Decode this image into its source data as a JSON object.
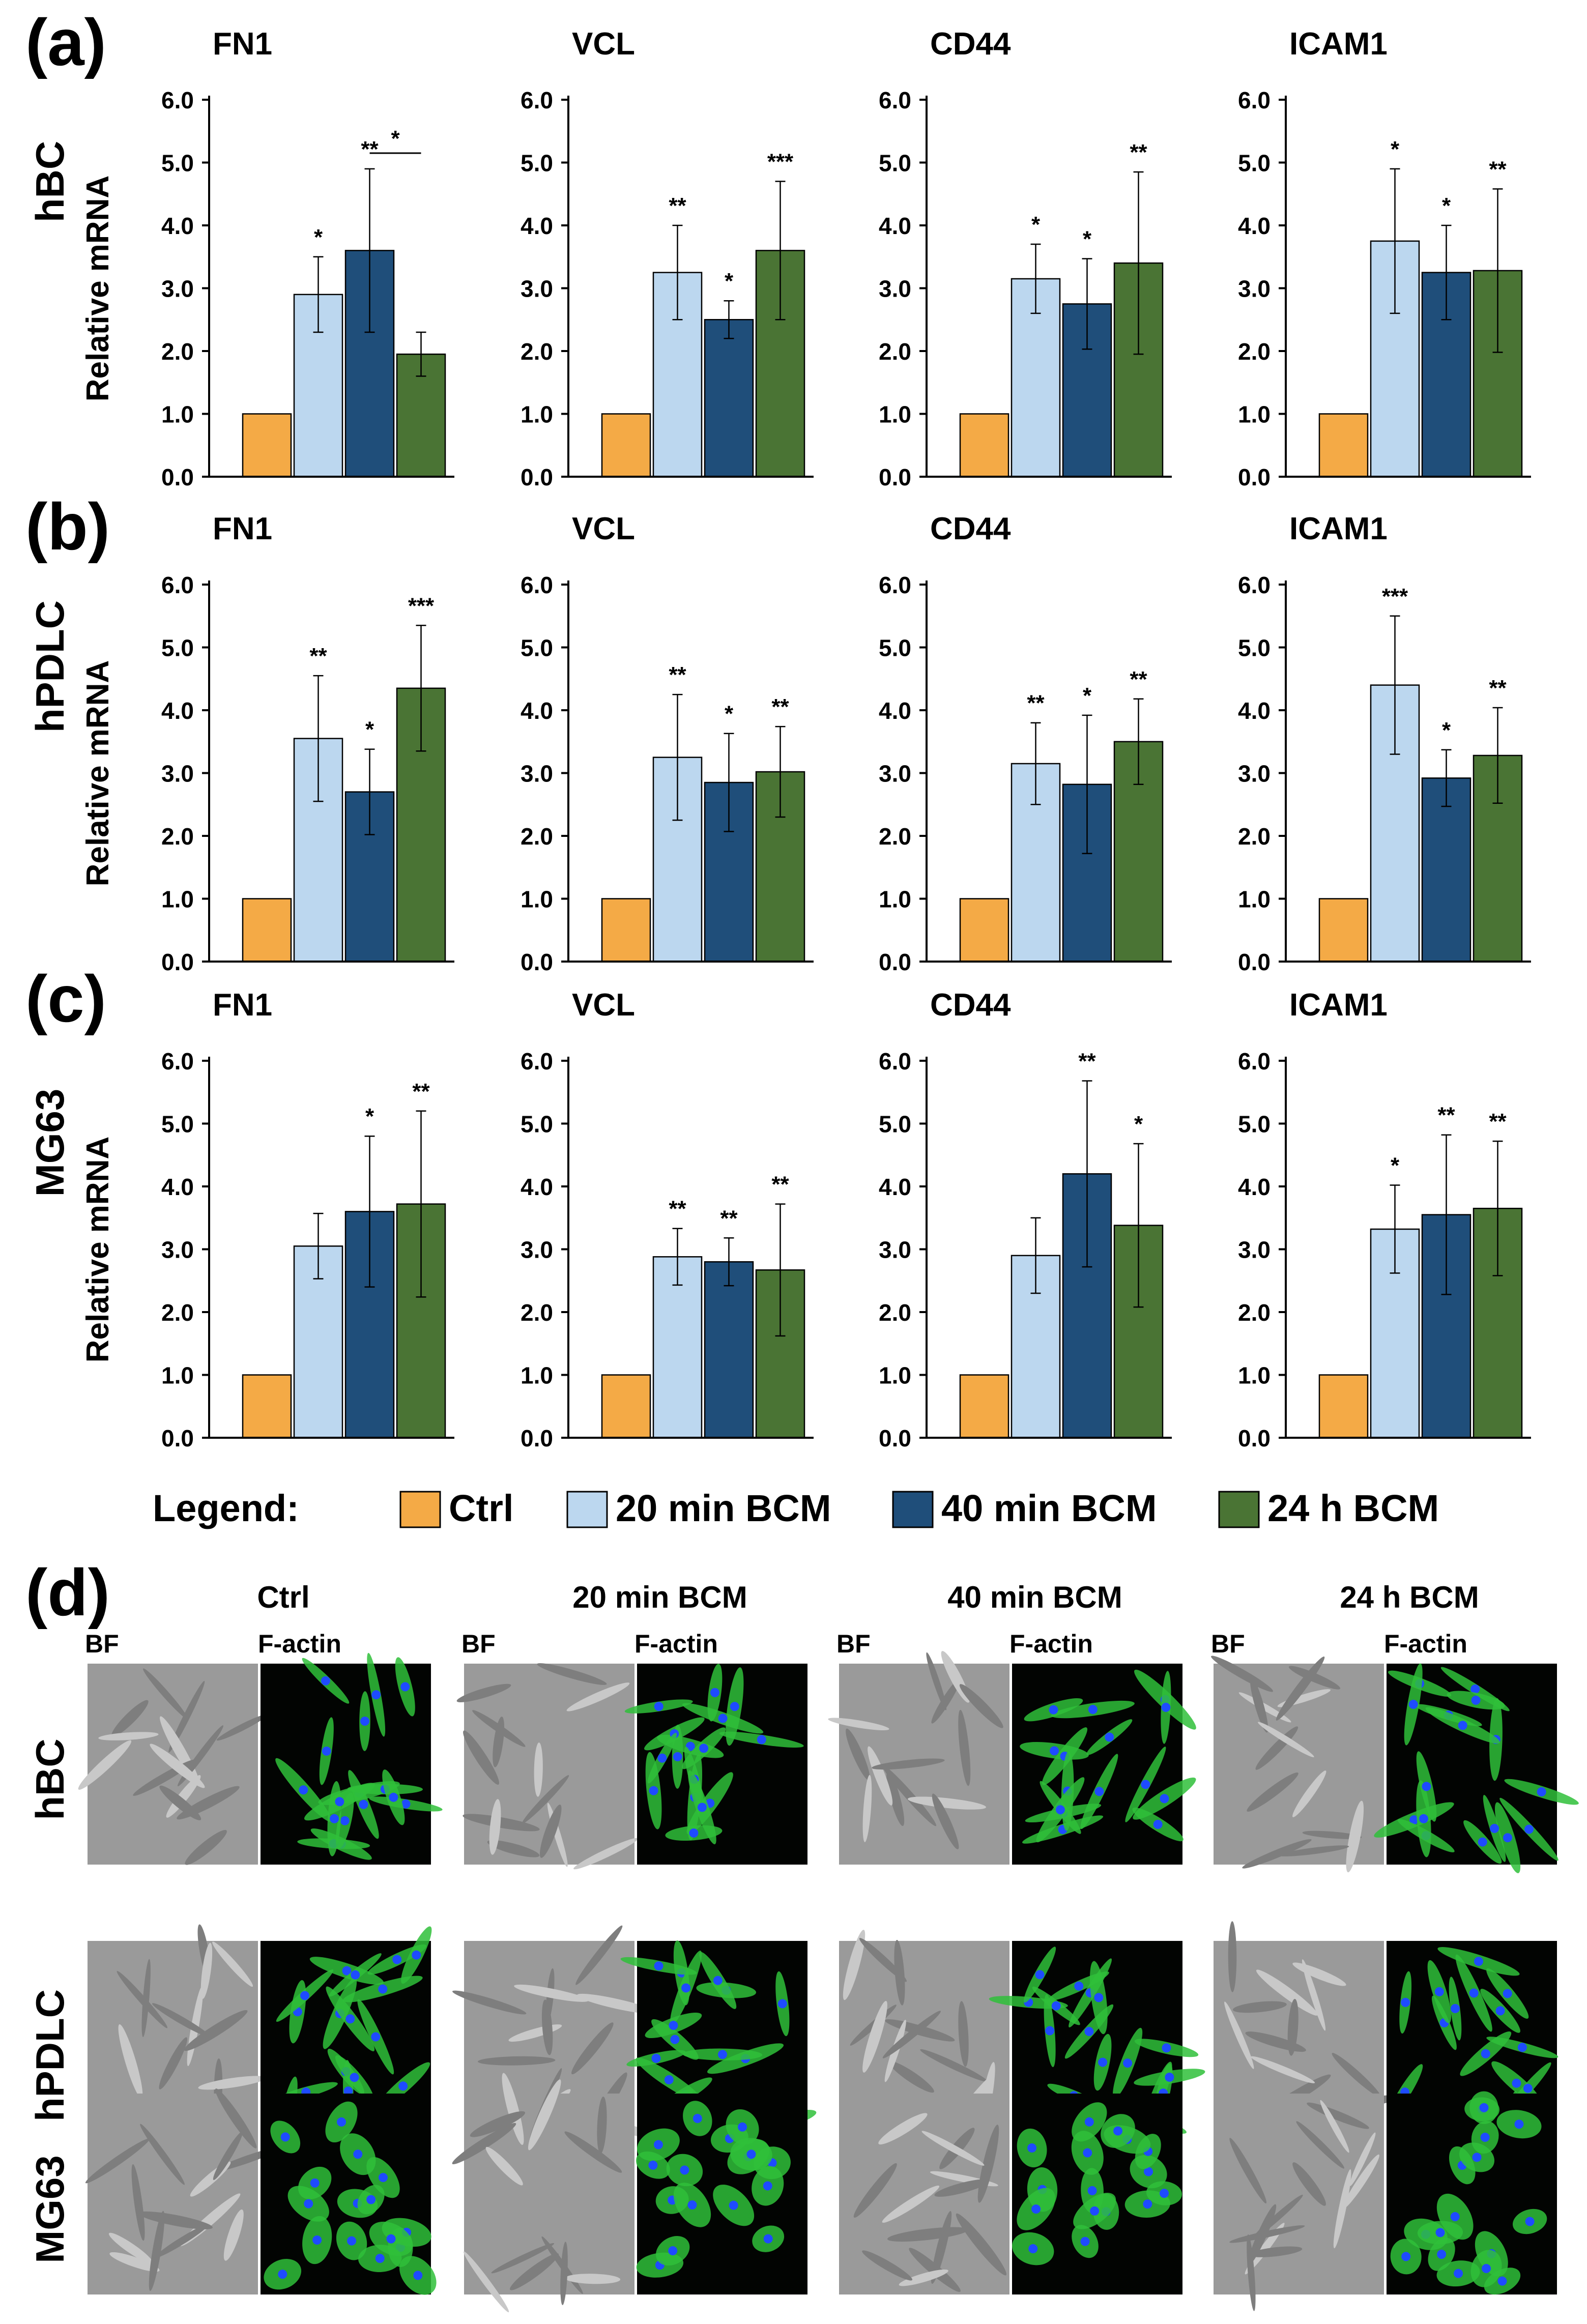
{
  "palette": {
    "Ctrl": "#F4AA46",
    "20 min BCM": "#BCD7EF",
    "40 min BCM": "#1F4E7A",
    "24 h BCM": "#4A7434",
    "nucleus": "#1E4BFF",
    "actin": "#2FBF3A"
  },
  "panel_letters": [
    "(a)",
    "(b)",
    "(c)",
    "(d)"
  ],
  "rows": [
    {
      "letter": "(a)",
      "cell_line": "hBC",
      "ylabel": "Relative mRNA"
    },
    {
      "letter": "(b)",
      "cell_line": "hPDLC",
      "ylabel": "Relative mRNA"
    },
    {
      "letter": "(c)",
      "cell_line": "MG63",
      "ylabel": "Relative mRNA"
    }
  ],
  "genes": [
    "FN1",
    "VCL",
    "CD44",
    "ICAM1"
  ],
  "y_ticks": [
    "0.0",
    "1.0",
    "2.0",
    "3.0",
    "4.0",
    "5.0",
    "6.0"
  ],
  "legend": {
    "label": "Legend:",
    "items": [
      "Ctrl",
      "20 min BCM",
      "40 min BCM",
      "24 h BCM"
    ]
  },
  "chart_data": [
    {
      "type": "bar",
      "row": "hBC",
      "title": "FN1",
      "ylabel": "Relative mRNA",
      "ylim": [
        0,
        6
      ],
      "grid": false,
      "categories": [
        "Ctrl",
        "20 min BCM",
        "40 min BCM",
        "24 h BCM"
      ],
      "values": [
        1.0,
        2.9,
        3.6,
        1.95
      ],
      "error": [
        0,
        0.6,
        1.3,
        0.35
      ],
      "significance": [
        "",
        "*",
        "**",
        ""
      ],
      "comparison": {
        "between": [
          "40 min BCM",
          "24 h BCM"
        ],
        "label": "*"
      }
    },
    {
      "type": "bar",
      "row": "hBC",
      "title": "VCL",
      "ylabel": "Relative mRNA",
      "ylim": [
        0,
        6
      ],
      "grid": false,
      "categories": [
        "Ctrl",
        "20 min BCM",
        "40 min BCM",
        "24 h BCM"
      ],
      "values": [
        1.0,
        3.25,
        2.5,
        3.6
      ],
      "error": [
        0,
        0.75,
        0.3,
        1.1
      ],
      "significance": [
        "",
        "**",
        "*",
        "***"
      ]
    },
    {
      "type": "bar",
      "row": "hBC",
      "title": "CD44",
      "ylabel": "Relative mRNA",
      "ylim": [
        0,
        6
      ],
      "grid": false,
      "categories": [
        "Ctrl",
        "20 min BCM",
        "40 min BCM",
        "24 h BCM"
      ],
      "values": [
        1.0,
        3.15,
        2.75,
        3.4
      ],
      "error": [
        0,
        0.55,
        0.72,
        1.45
      ],
      "significance": [
        "",
        "*",
        "*",
        "**"
      ]
    },
    {
      "type": "bar",
      "row": "hBC",
      "title": "ICAM1",
      "ylabel": "Relative mRNA",
      "ylim": [
        0,
        6
      ],
      "grid": false,
      "categories": [
        "Ctrl",
        "20 min BCM",
        "40 min BCM",
        "24 h BCM"
      ],
      "values": [
        1.0,
        3.75,
        3.25,
        3.28
      ],
      "error": [
        0,
        1.15,
        0.75,
        1.3
      ],
      "significance": [
        "",
        "*",
        "*",
        "**"
      ]
    },
    {
      "type": "bar",
      "row": "hPDLC",
      "title": "FN1",
      "ylabel": "Relative mRNA",
      "ylim": [
        0,
        6
      ],
      "grid": false,
      "categories": [
        "Ctrl",
        "20 min BCM",
        "40 min BCM",
        "24 h BCM"
      ],
      "values": [
        1.0,
        3.55,
        2.7,
        4.35
      ],
      "error": [
        0,
        1.0,
        0.68,
        1.0
      ],
      "significance": [
        "",
        "**",
        "*",
        "***"
      ]
    },
    {
      "type": "bar",
      "row": "hPDLC",
      "title": "VCL",
      "ylabel": "Relative mRNA",
      "ylim": [
        0,
        6
      ],
      "grid": false,
      "categories": [
        "Ctrl",
        "20 min BCM",
        "40 min BCM",
        "24 h BCM"
      ],
      "values": [
        1.0,
        3.25,
        2.85,
        3.02
      ],
      "error": [
        0,
        1.0,
        0.78,
        0.72
      ],
      "significance": [
        "",
        "**",
        "*",
        "**"
      ]
    },
    {
      "type": "bar",
      "row": "hPDLC",
      "title": "CD44",
      "ylabel": "Relative mRNA",
      "ylim": [
        0,
        6
      ],
      "grid": false,
      "categories": [
        "Ctrl",
        "20 min BCM",
        "40 min BCM",
        "24 h BCM"
      ],
      "values": [
        1.0,
        3.15,
        2.82,
        3.5
      ],
      "error": [
        0,
        0.65,
        1.1,
        0.68
      ],
      "significance": [
        "",
        "**",
        "*",
        "**"
      ]
    },
    {
      "type": "bar",
      "row": "hPDLC",
      "title": "ICAM1",
      "ylabel": "Relative mRNA",
      "ylim": [
        0,
        6
      ],
      "grid": false,
      "categories": [
        "Ctrl",
        "20 min BCM",
        "40 min BCM",
        "24 h BCM"
      ],
      "values": [
        1.0,
        4.4,
        2.92,
        3.28
      ],
      "error": [
        0,
        1.1,
        0.45,
        0.76
      ],
      "significance": [
        "",
        "***",
        "*",
        "**"
      ]
    },
    {
      "type": "bar",
      "row": "MG63",
      "title": "FN1",
      "ylabel": "Relative mRNA",
      "ylim": [
        0,
        6
      ],
      "grid": false,
      "categories": [
        "Ctrl",
        "20 min BCM",
        "40 min BCM",
        "24 h BCM"
      ],
      "values": [
        1.0,
        3.05,
        3.6,
        3.72
      ],
      "error": [
        0,
        0.52,
        1.2,
        1.48
      ],
      "significance": [
        "",
        "",
        "*",
        "**"
      ]
    },
    {
      "type": "bar",
      "row": "MG63",
      "title": "VCL",
      "ylabel": "Relative mRNA",
      "ylim": [
        0,
        6
      ],
      "grid": false,
      "categories": [
        "Ctrl",
        "20 min BCM",
        "40 min BCM",
        "24 h BCM"
      ],
      "values": [
        1.0,
        2.88,
        2.8,
        2.67
      ],
      "error": [
        0,
        0.45,
        0.38,
        1.05
      ],
      "significance": [
        "",
        "**",
        "**",
        "**"
      ]
    },
    {
      "type": "bar",
      "row": "MG63",
      "title": "CD44",
      "ylabel": "Relative mRNA",
      "ylim": [
        0,
        6
      ],
      "grid": false,
      "categories": [
        "Ctrl",
        "20 min BCM",
        "40 min BCM",
        "24 h BCM"
      ],
      "values": [
        1.0,
        2.9,
        4.2,
        3.38
      ],
      "error": [
        0,
        0.6,
        1.48,
        1.3
      ],
      "significance": [
        "",
        "",
        "**",
        "*"
      ]
    },
    {
      "type": "bar",
      "row": "MG63",
      "title": "ICAM1",
      "ylabel": "Relative mRNA",
      "ylim": [
        0,
        6
      ],
      "grid": false,
      "categories": [
        "Ctrl",
        "20 min BCM",
        "40 min BCM",
        "24 h BCM"
      ],
      "values": [
        1.0,
        3.32,
        3.55,
        3.65
      ],
      "error": [
        0,
        0.7,
        1.27,
        1.07
      ],
      "significance": [
        "",
        "*",
        "**",
        "**"
      ]
    }
  ],
  "microscopy": {
    "letter": "(d)",
    "conditions": [
      "Ctrl",
      "20 min BCM",
      "40 min BCM",
      "24 h BCM"
    ],
    "channels": [
      "BF",
      "F-actin"
    ],
    "rows": [
      "hBC",
      "hPDLC",
      "MG63"
    ]
  }
}
